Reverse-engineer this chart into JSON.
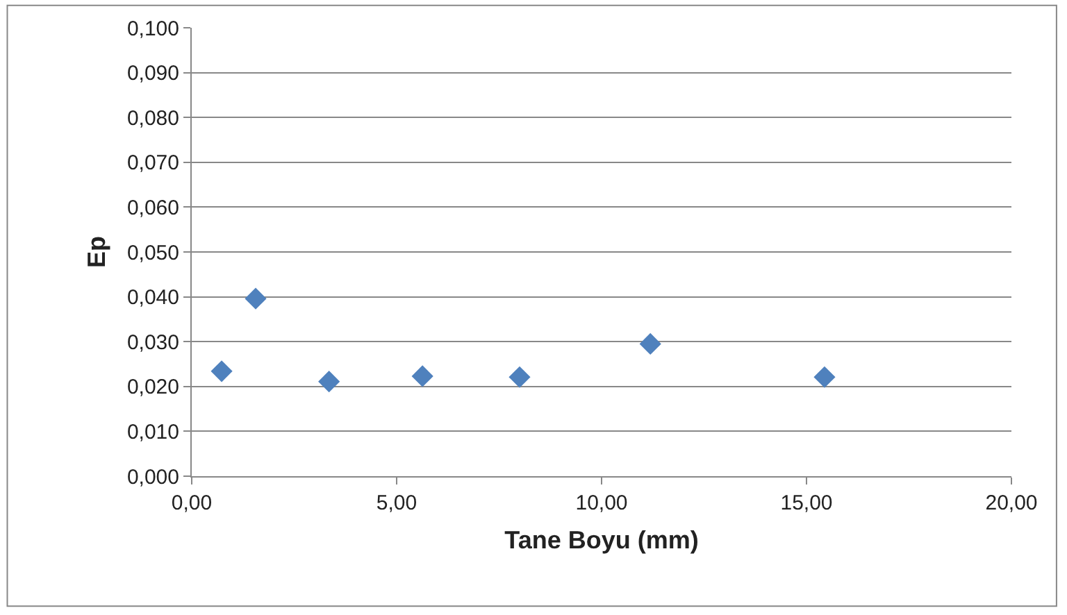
{
  "chart_data": {
    "type": "scatter",
    "xlabel": "Tane Boyu (mm)",
    "ylabel": "Ep",
    "x": [
      0.73,
      1.56,
      3.35,
      5.63,
      8.0,
      11.19,
      15.44
    ],
    "series": [
      {
        "color": "#4f81bd",
        "values": [
          0.0234,
          0.0396,
          0.0211,
          0.0223,
          0.0221,
          0.0295,
          0.0221
        ]
      }
    ],
    "xlim": [
      0,
      20
    ],
    "xticks": [
      {
        "value": 0,
        "label": "0,00"
      },
      {
        "value": 5,
        "label": "5,00"
      },
      {
        "value": 10,
        "label": "10,00"
      },
      {
        "value": 15,
        "label": "15,00"
      },
      {
        "value": 20,
        "label": "20,00"
      }
    ],
    "ylim": [
      0,
      0.1
    ],
    "yticks": [
      {
        "value": 0,
        "label": "0,000"
      },
      {
        "value": 0.01,
        "label": "0,010"
      },
      {
        "value": 0.02,
        "label": "0,020"
      },
      {
        "value": 0.03,
        "label": "0,030"
      },
      {
        "value": 0.04,
        "label": "0,040"
      },
      {
        "value": 0.05,
        "label": "0,050"
      },
      {
        "value": 0.06,
        "label": "0,060"
      },
      {
        "value": 0.07,
        "label": "0,070"
      },
      {
        "value": 0.08,
        "label": "0,080"
      },
      {
        "value": 0.09,
        "label": "0,090"
      },
      {
        "value": 0.1,
        "label": "0,100"
      }
    ],
    "grid": "y",
    "marker": "diamond"
  }
}
